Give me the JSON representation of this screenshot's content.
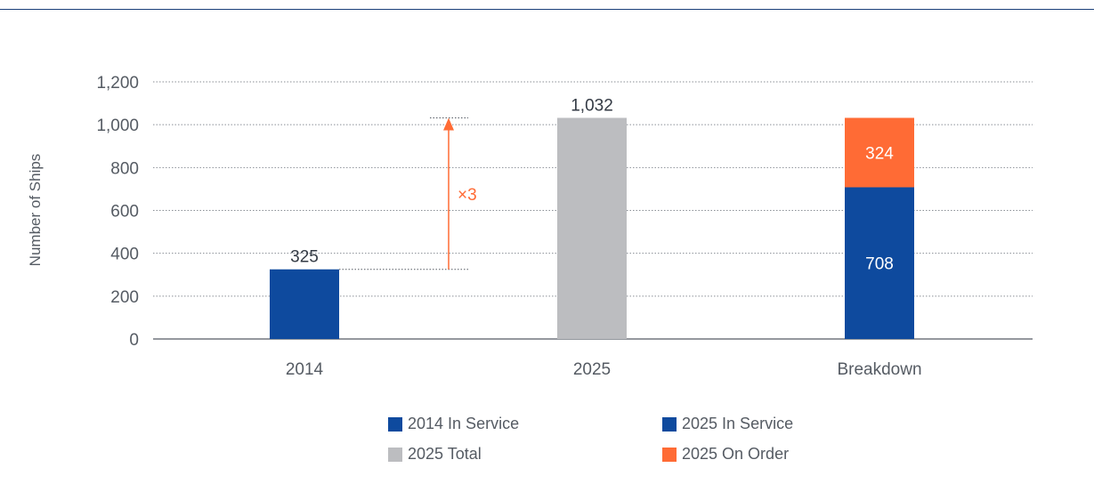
{
  "chart_data": {
    "type": "bar",
    "categories": [
      "2014",
      "2025",
      "Breakdown"
    ],
    "series": [
      {
        "name": "2014 In Service",
        "values": [
          325,
          null,
          null
        ],
        "color": "#0e4a9e"
      },
      {
        "name": "2025 Total",
        "values": [
          null,
          1032,
          null
        ],
        "color": "#bcbdc0"
      },
      {
        "name": "2025 In Service",
        "values": [
          null,
          null,
          708
        ],
        "color": "#0e4a9e"
      },
      {
        "name": "2025 On Order",
        "values": [
          null,
          null,
          324
        ],
        "color": "#ff6b35"
      }
    ],
    "stacked": true,
    "xlabel": "",
    "ylabel": "Number of Ships",
    "ylim": [
      0,
      1200
    ],
    "yticks": [
      0,
      200,
      400,
      600,
      800,
      1000,
      1200
    ],
    "ytick_labels": [
      "0",
      "200",
      "400",
      "600",
      "800",
      "1,000",
      "1,200"
    ],
    "data_labels": {
      "2014": "325",
      "2025": "1,032",
      "breakdown_in_service": "708",
      "breakdown_on_order": "324"
    },
    "annotation": {
      "text": "×3",
      "from": 325,
      "to": 1032,
      "color": "#ff6b35"
    },
    "grid": true,
    "legend_position": "bottom"
  },
  "legend": [
    {
      "label": "2014 In Service",
      "color": "#0e4a9e"
    },
    {
      "label": "2025 In Service",
      "color": "#0e4a9e"
    },
    {
      "label": "2025 Total",
      "color": "#bcbdc0"
    },
    {
      "label": "2025 On Order",
      "color": "#ff6b35"
    }
  ]
}
